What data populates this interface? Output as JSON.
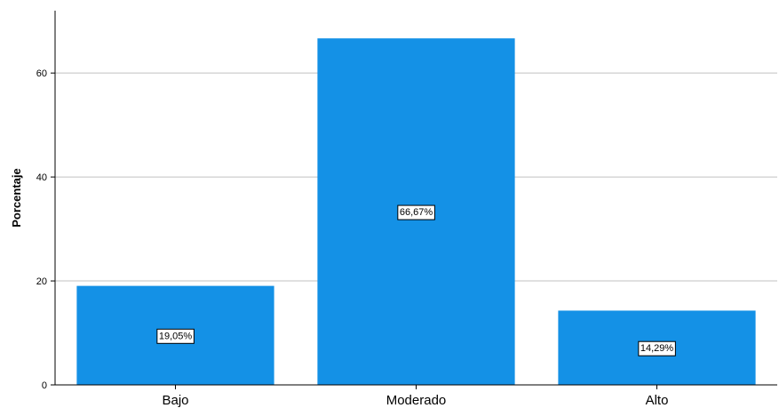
{
  "chart_data": {
    "type": "bar",
    "title": "",
    "xlabel": "",
    "ylabel": "Porcentaje",
    "categories": [
      "Bajo",
      "Moderado",
      "Alto"
    ],
    "values": [
      19.05,
      66.67,
      14.29
    ],
    "data_labels": [
      "19,05%",
      "66,67%",
      "14,29%"
    ],
    "ylim": [
      0,
      72
    ],
    "yticks": [
      0,
      20,
      40,
      60
    ],
    "ytick_labels": [
      "0",
      "20",
      "40",
      "60"
    ],
    "grid": true,
    "legend": "none",
    "bar_color": "#1491e6",
    "grid_color": "#c0c0c0"
  }
}
